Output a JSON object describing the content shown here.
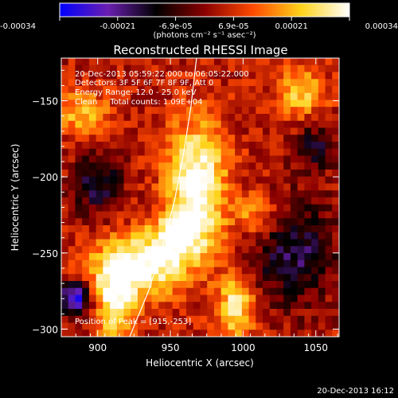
{
  "chart_data": {
    "type": "heatmap",
    "title": "Reconstructed RHESSI Image",
    "xlabel": "Heliocentric X (arcsec)",
    "ylabel": "Heliocentric Y (arcsec)",
    "xlim": [
      875,
      1066
    ],
    "ylim": [
      -305,
      -122
    ],
    "x_ticks": [
      900,
      950,
      1000,
      1050
    ],
    "y_ticks": [
      -150,
      -200,
      -250,
      -300
    ],
    "colorbar": {
      "range": [
        -0.00034,
        0.00034
      ],
      "tick_labels": [
        "-0.00034",
        "-0.00021",
        "-6.9e-05",
        "6.9e-05",
        "0.00021",
        "0.00034"
      ],
      "unit_label": "(photons cm⁻² s⁻¹ asec⁻²)",
      "colors": [
        "#0000ff",
        "#6a1fb0",
        "#000000",
        "#8a0000",
        "#ff4a00",
        "#ffd21a",
        "#ffffff"
      ]
    },
    "annotations": [
      "20-Dec-2013 05:59:22.000 to 06:05:22.000",
      "Detectors: 3F 5F 6F 7F 8F 9F, Att 0",
      "Energy Range: 12.0 - 25.0 keV",
      "Clean     Total counts: 1.09E+04"
    ],
    "peak": {
      "label": "Position of Peak = [915,-253]",
      "x": 915,
      "y": -253
    },
    "limb_curve": [
      [
        922,
        -305
      ],
      [
        935,
        -275
      ],
      [
        945,
        -245
      ],
      [
        953,
        -215
      ],
      [
        959,
        -185
      ],
      [
        964,
        -155
      ],
      [
        968,
        -122
      ]
    ],
    "sources": [
      {
        "x": 968,
        "y": -205,
        "sx": 14,
        "sy": 28,
        "amp": 1.0
      },
      {
        "x": 930,
        "y": -258,
        "sx": 22,
        "sy": 14,
        "amp": 0.95
      },
      {
        "x": 912,
        "y": -282,
        "sx": 10,
        "sy": 18,
        "amp": 0.8
      },
      {
        "x": 995,
        "y": -285,
        "sx": 9,
        "sy": 14,
        "amp": 0.75
      },
      {
        "x": 955,
        "y": -238,
        "sx": 12,
        "sy": 10,
        "amp": 0.7
      },
      {
        "x": 1040,
        "y": -145,
        "sx": 12,
        "sy": 12,
        "amp": 0.55
      },
      {
        "x": 888,
        "y": -158,
        "sx": 14,
        "sy": 10,
        "amp": 0.5
      },
      {
        "x": 1010,
        "y": -225,
        "sx": 12,
        "sy": 10,
        "amp": 0.45
      },
      {
        "x": 885,
        "y": -280,
        "sx": 8,
        "sy": 8,
        "amp": -1.0
      },
      {
        "x": 900,
        "y": -205,
        "sx": 12,
        "sy": 14,
        "amp": -0.55
      },
      {
        "x": 1035,
        "y": -250,
        "sx": 20,
        "sy": 24,
        "amp": -0.6
      },
      {
        "x": 1050,
        "y": -180,
        "sx": 10,
        "sy": 12,
        "amp": -0.45
      }
    ]
  },
  "footer": {
    "timestamp": "20-Dec-2013 16:12"
  }
}
